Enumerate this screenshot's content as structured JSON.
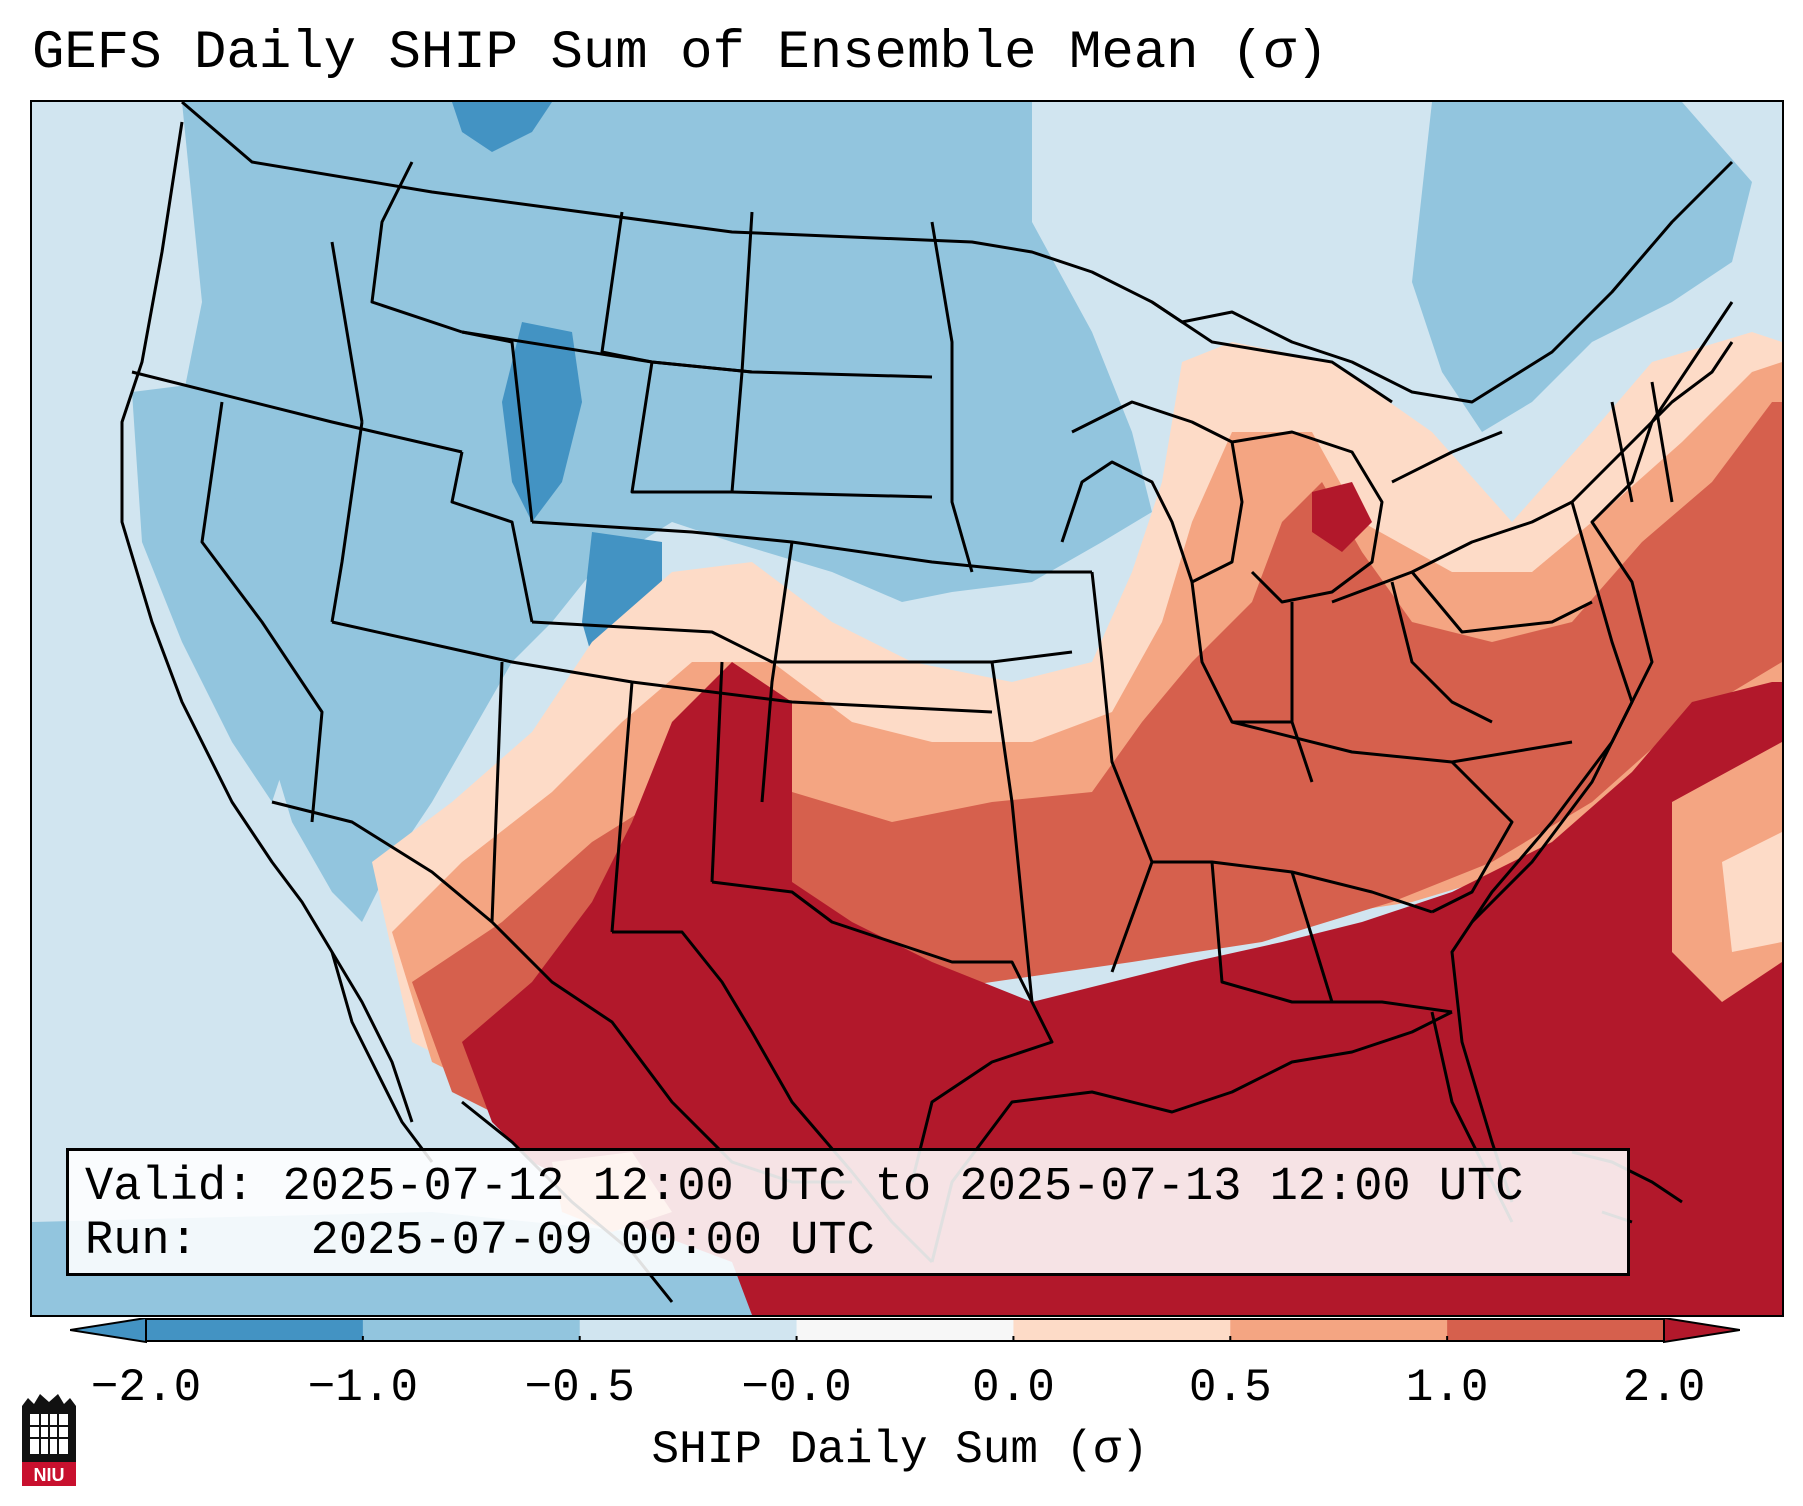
{
  "title": "GEFS Daily SHIP Sum of Ensemble Mean (σ)",
  "info": {
    "valid_label": "Valid:",
    "valid_value": "2025-07-12 12:00 UTC to 2025-07-13 12:00 UTC",
    "run_label": "Run:",
    "run_value": "2025-07-09 00:00 UTC"
  },
  "colorbar": {
    "label": "SHIP Daily Sum (σ)",
    "ticks": [
      "−2.0",
      "−1.0",
      "−0.5",
      "−0.0",
      "0.0",
      "0.5",
      "1.0",
      "2.0"
    ],
    "colors": [
      "#4393c3",
      "#92c5de",
      "#d1e5f0",
      "#f7f7f7",
      "#fddbc7",
      "#f4a582",
      "#d6604d",
      "#b2182b"
    ],
    "extend": "both"
  },
  "logo": {
    "text": "NIU",
    "color": "#c8102e"
  },
  "map": {
    "region": "Continental United States",
    "colors": {
      "strong_positive": "#b2182b",
      "positive": "#d6604d",
      "weak_positive": "#f4a582",
      "near_zero_positive": "#fddbc7",
      "near_zero_negative": "#d1e5f0",
      "negative": "#92c5de",
      "strong_negative": "#4393c3",
      "border": "#000000"
    }
  }
}
